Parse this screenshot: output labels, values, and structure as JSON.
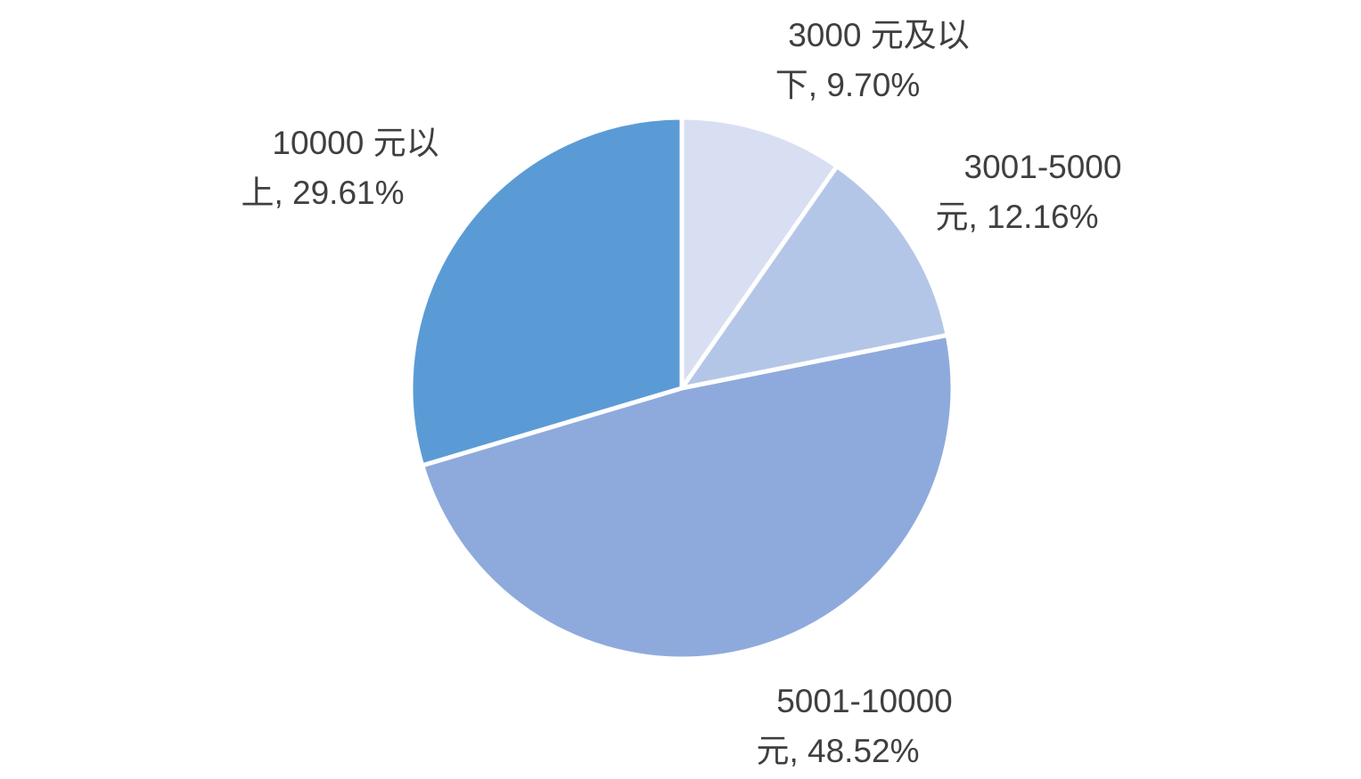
{
  "background": "#FFFFFF",
  "text_color": "#3F3F3F",
  "chart_data": {
    "type": "pie",
    "title": "",
    "categories": [
      "3000 元及以下",
      "3001-5000 元",
      "5001-10000 元",
      "10000 元以上"
    ],
    "values": [
      9.7,
      12.16,
      48.52,
      29.61
    ],
    "value_unit": "%",
    "colors": [
      "#D9DFF2",
      "#B4C6E7",
      "#8EAADC",
      "#5B9BD5"
    ],
    "slice_border_color": "#FFFFFF",
    "start_angle_deg": 0,
    "direction": "clockwise",
    "legend": "none",
    "label_style": "category-and-percent, outside"
  },
  "labels": [
    {
      "full": "3000 元及以下, 9.70%",
      "line1": "3000 元及以",
      "line2": "下, 9.70%"
    },
    {
      "full": "3001-5000 元, 12.16%",
      "line1": "3001-5000",
      "line2": "元, 12.16%"
    },
    {
      "full": "5001-10000 元, 48.52%",
      "line1": "5001-10000",
      "line2": "元, 48.52%"
    },
    {
      "full": "10000 元以上, 29.61%",
      "line1": "10000 元以",
      "line2": "上, 29.61%"
    }
  ]
}
